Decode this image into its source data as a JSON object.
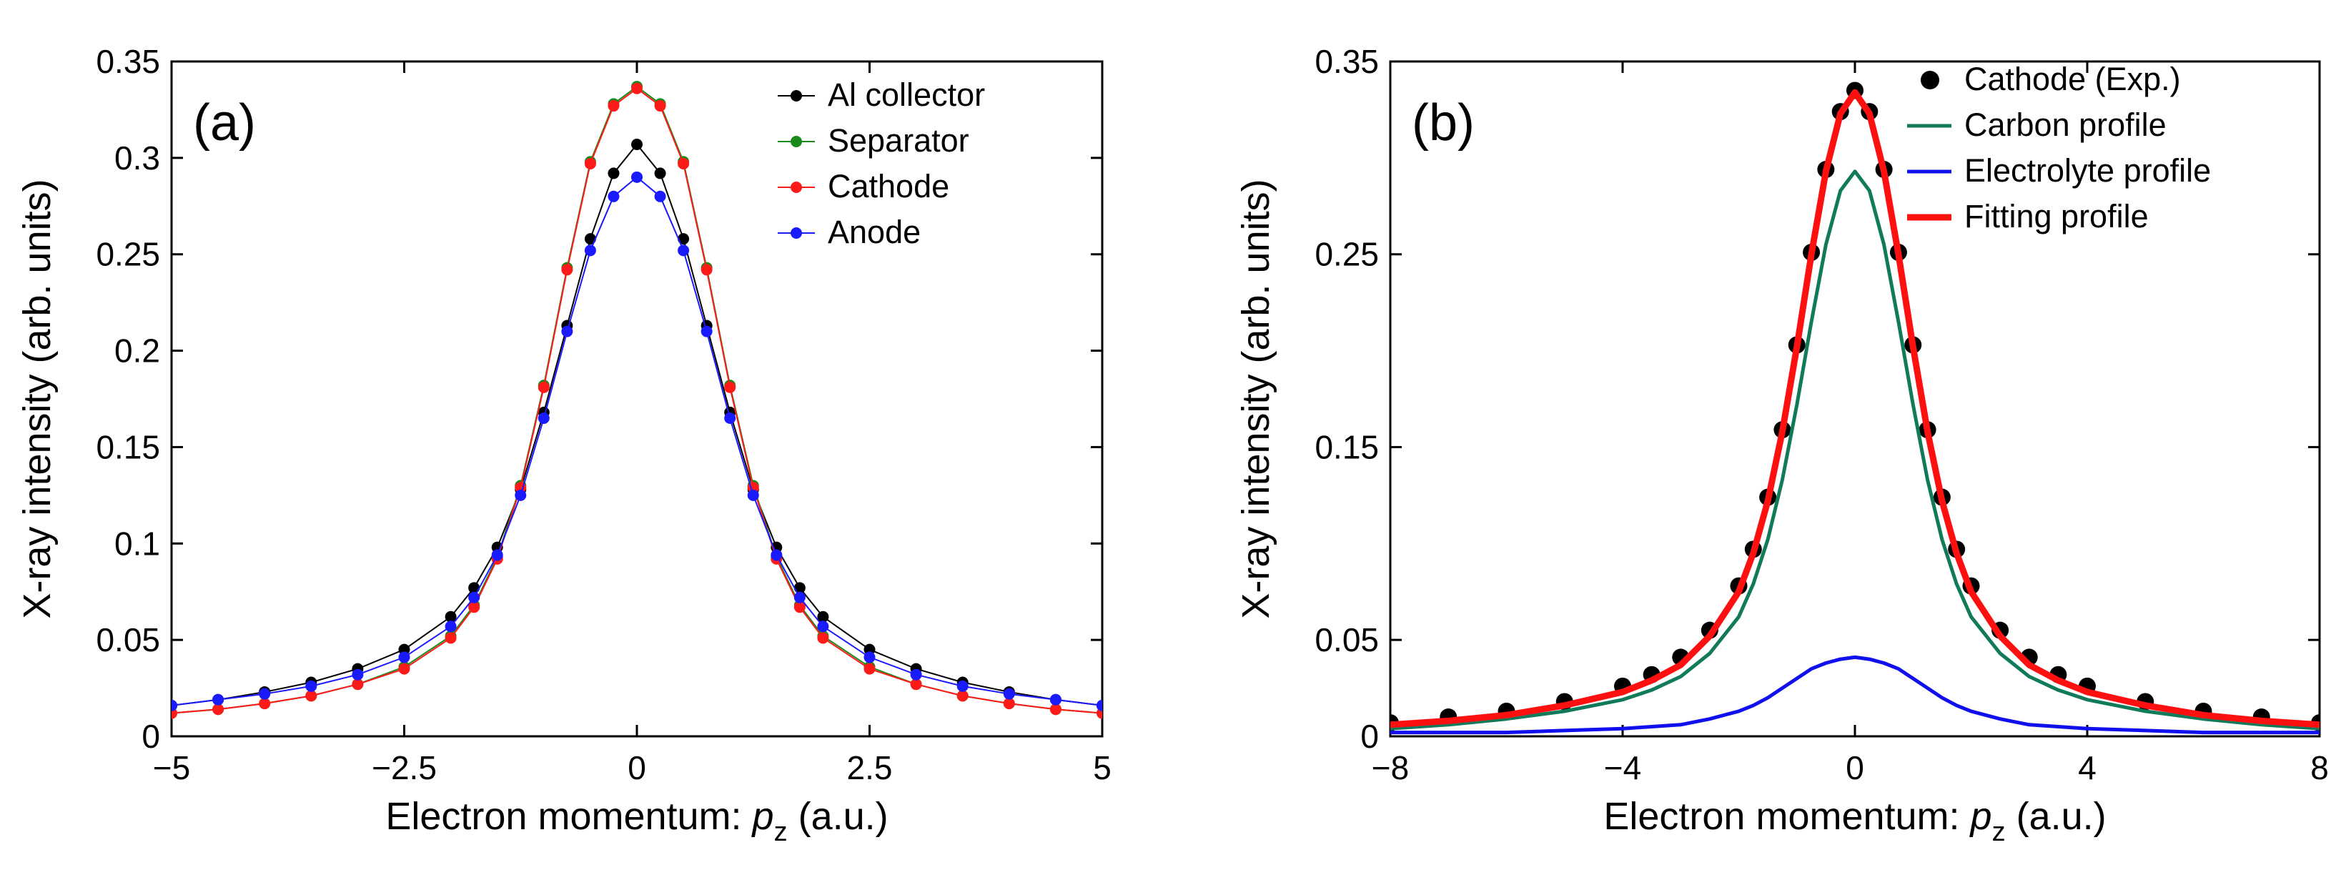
{
  "chart_data": [
    {
      "type": "line",
      "panel_label": "(a)",
      "xlabel_main": "Electron momentum: ",
      "xlabel_var": "p",
      "xlabel_sub": "z",
      "xlabel_unit": " (a.u.)",
      "ylabel": "X-ray intensity (arb. units)",
      "xlim": [
        -5,
        5
      ],
      "ylim": [
        0,
        0.35
      ],
      "xticks": [
        -5,
        -2.5,
        0,
        2.5,
        5
      ],
      "xtick_labels": [
        "−5",
        "−2.5",
        "0",
        "2.5",
        "5"
      ],
      "yticks": [
        0,
        0.05,
        0.1,
        0.15,
        0.2,
        0.25,
        0.3,
        0.35
      ],
      "ytick_labels": [
        "0",
        "0.05",
        "0.1",
        "0.15",
        "0.2",
        "0.25",
        "0.3",
        "0.35"
      ],
      "legend_position": "top-right",
      "x": [
        -5.0,
        -4.5,
        -4.0,
        -3.5,
        -3.0,
        -2.5,
        -2.0,
        -1.75,
        -1.5,
        -1.25,
        -1.0,
        -0.75,
        -0.5,
        -0.25,
        0.0,
        0.25,
        0.5,
        0.75,
        1.0,
        1.25,
        1.5,
        1.75,
        2.0,
        2.5,
        3.0,
        3.5,
        4.0,
        4.5,
        5.0
      ],
      "series": [
        {
          "name": "Al collector",
          "color": "#000000",
          "marker": "dot",
          "values": [
            0.016,
            0.019,
            0.023,
            0.028,
            0.035,
            0.045,
            0.062,
            0.077,
            0.098,
            0.128,
            0.168,
            0.213,
            0.258,
            0.292,
            0.307,
            0.292,
            0.258,
            0.213,
            0.168,
            0.128,
            0.098,
            0.077,
            0.062,
            0.045,
            0.035,
            0.028,
            0.023,
            0.019,
            0.016
          ]
        },
        {
          "name": "Separator",
          "color": "#1a8a1a",
          "marker": "dot",
          "values": [
            0.012,
            0.014,
            0.017,
            0.021,
            0.027,
            0.036,
            0.052,
            0.068,
            0.093,
            0.13,
            0.182,
            0.243,
            0.298,
            0.328,
            0.337,
            0.328,
            0.298,
            0.243,
            0.182,
            0.13,
            0.093,
            0.068,
            0.052,
            0.036,
            0.027,
            0.021,
            0.017,
            0.014,
            0.012
          ]
        },
        {
          "name": "Cathode",
          "color": "#ff1a1a",
          "marker": "dot",
          "values": [
            0.012,
            0.014,
            0.017,
            0.021,
            0.027,
            0.035,
            0.051,
            0.067,
            0.092,
            0.129,
            0.181,
            0.242,
            0.297,
            0.327,
            0.336,
            0.327,
            0.297,
            0.242,
            0.181,
            0.129,
            0.092,
            0.067,
            0.051,
            0.035,
            0.027,
            0.021,
            0.017,
            0.014,
            0.012
          ]
        },
        {
          "name": "Anode",
          "color": "#1a1aff",
          "marker": "dot",
          "values": [
            0.016,
            0.019,
            0.022,
            0.026,
            0.032,
            0.041,
            0.057,
            0.072,
            0.094,
            0.125,
            0.165,
            0.21,
            0.252,
            0.28,
            0.29,
            0.28,
            0.252,
            0.21,
            0.165,
            0.125,
            0.094,
            0.072,
            0.057,
            0.041,
            0.032,
            0.026,
            0.022,
            0.019,
            0.016
          ]
        }
      ]
    },
    {
      "type": "line",
      "panel_label": "(b)",
      "xlabel_main": "Electron momentum: ",
      "xlabel_var": "p",
      "xlabel_sub": "z",
      "xlabel_unit": " (a.u.)",
      "ylabel": "X-ray intensity (arb. units)",
      "xlim": [
        -8,
        8
      ],
      "ylim": [
        0,
        0.35
      ],
      "xticks": [
        -8,
        -4,
        0,
        4,
        8
      ],
      "xtick_labels": [
        "−8",
        "−4",
        "0",
        "4",
        "8"
      ],
      "yticks": [
        0,
        0.05,
        0.15,
        0.25,
        0.35
      ],
      "ytick_labels": [
        "0",
        "0.05",
        "0.15",
        "0.25",
        "0.35"
      ],
      "legend_position": "top-right",
      "x": [
        -8.0,
        -7.0,
        -6.0,
        -5.0,
        -4.0,
        -3.5,
        -3.0,
        -2.5,
        -2.0,
        -1.75,
        -1.5,
        -1.25,
        -1.0,
        -0.75,
        -0.5,
        -0.25,
        0.0,
        0.25,
        0.5,
        0.75,
        1.0,
        1.25,
        1.5,
        1.75,
        2.0,
        2.5,
        3.0,
        3.5,
        4.0,
        5.0,
        6.0,
        7.0,
        8.0
      ],
      "series": [
        {
          "name": "Cathode (Exp.)",
          "color": "#000000",
          "marker": "large-dot",
          "values": [
            0.007,
            0.01,
            0.013,
            0.018,
            0.026,
            0.032,
            0.041,
            0.055,
            0.078,
            0.097,
            0.124,
            0.159,
            0.203,
            0.251,
            0.294,
            0.324,
            0.335,
            0.324,
            0.294,
            0.251,
            0.203,
            0.159,
            0.124,
            0.097,
            0.078,
            0.055,
            0.041,
            0.032,
            0.026,
            0.018,
            0.013,
            0.01,
            0.007
          ]
        },
        {
          "name": "Carbon profile",
          "color": "#107a5a",
          "marker": "none",
          "values": [
            0.004,
            0.006,
            0.009,
            0.013,
            0.019,
            0.024,
            0.031,
            0.043,
            0.062,
            0.079,
            0.102,
            0.133,
            0.172,
            0.215,
            0.255,
            0.283,
            0.293,
            0.283,
            0.255,
            0.215,
            0.172,
            0.133,
            0.102,
            0.079,
            0.062,
            0.043,
            0.031,
            0.024,
            0.019,
            0.013,
            0.009,
            0.006,
            0.004
          ]
        },
        {
          "name": "Electrolyte profile",
          "color": "#1010ee",
          "marker": "none",
          "values": [
            0.002,
            0.002,
            0.002,
            0.003,
            0.004,
            0.005,
            0.006,
            0.009,
            0.013,
            0.016,
            0.02,
            0.025,
            0.03,
            0.035,
            0.038,
            0.04,
            0.041,
            0.04,
            0.038,
            0.035,
            0.03,
            0.025,
            0.02,
            0.016,
            0.013,
            0.009,
            0.006,
            0.005,
            0.004,
            0.003,
            0.002,
            0.002,
            0.002
          ]
        },
        {
          "name": "Fitting profile",
          "color": "#ff1010",
          "marker": "none",
          "values": [
            0.006,
            0.008,
            0.011,
            0.016,
            0.023,
            0.029,
            0.037,
            0.052,
            0.075,
            0.095,
            0.122,
            0.158,
            0.202,
            0.25,
            0.293,
            0.323,
            0.334,
            0.323,
            0.293,
            0.25,
            0.202,
            0.158,
            0.122,
            0.095,
            0.075,
            0.052,
            0.037,
            0.029,
            0.023,
            0.016,
            0.011,
            0.008,
            0.006
          ]
        }
      ]
    }
  ]
}
